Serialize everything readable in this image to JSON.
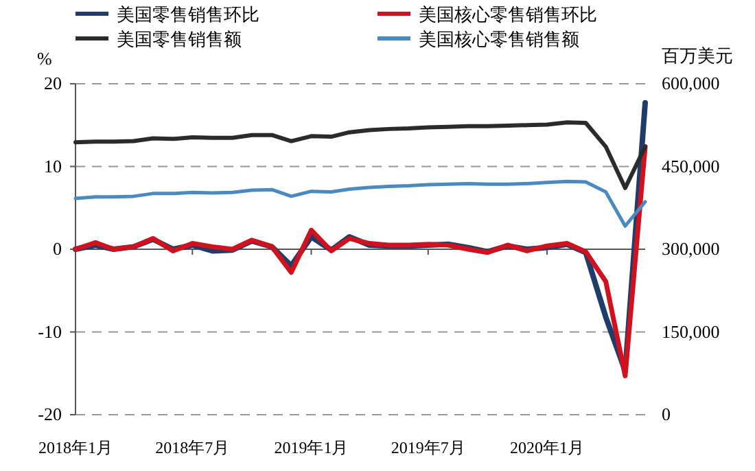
{
  "chart_data": {
    "type": "line",
    "ylabel": "%",
    "y2label": "百万美元",
    "x": [
      "2018-01",
      "2018-02",
      "2018-03",
      "2018-04",
      "2018-05",
      "2018-06",
      "2018-07",
      "2018-08",
      "2018-09",
      "2018-10",
      "2018-11",
      "2018-12",
      "2019-01",
      "2019-02",
      "2019-03",
      "2019-04",
      "2019-05",
      "2019-06",
      "2019-07",
      "2019-08",
      "2019-09",
      "2019-10",
      "2019-11",
      "2019-12",
      "2020-01",
      "2020-02",
      "2020-03",
      "2020-04",
      "2020-05",
      "2020-06"
    ],
    "xlim": [
      "2018-01",
      "2020-06"
    ],
    "xticks": [
      {
        "value": "2018-01",
        "label": "2018年1月"
      },
      {
        "value": "2018-07",
        "label": "2018年7月"
      },
      {
        "value": "2019-01",
        "label": "2019年1月"
      },
      {
        "value": "2019-07",
        "label": "2019年7月"
      },
      {
        "value": "2020-01",
        "label": "2020年1月"
      }
    ],
    "ylim": [
      -20,
      20
    ],
    "yticks": [
      -20,
      -10,
      0,
      10,
      20
    ],
    "y2lim": [
      0,
      600000
    ],
    "y2ticks": [
      {
        "value": 0,
        "label": "0"
      },
      {
        "value": 150000,
        "label": "150,000"
      },
      {
        "value": 300000,
        "label": "300,000"
      },
      {
        "value": 450000,
        "label": "450,000"
      },
      {
        "value": 600000,
        "label": "600,000"
      }
    ],
    "series": [
      {
        "name": "美国零售销售环比",
        "color": "#1f3d6b",
        "values": [
          0,
          0.5,
          0,
          0.3,
          1.2,
          0,
          0.5,
          -0.2,
          -0.1,
          1.0,
          0.3,
          -2.0,
          1.5,
          -0.1,
          1.5,
          0.5,
          0.4,
          0.4,
          0.5,
          0.6,
          0.2,
          -0.3,
          0.4,
          0,
          0.2,
          0.6,
          -0.4,
          -8.2,
          -14.7,
          17.7
        ]
      },
      {
        "name": "美国核心零售销售环比",
        "color": "#d0121e",
        "values": [
          0,
          0.8,
          0,
          0.3,
          1.3,
          -0.2,
          0.7,
          0.3,
          0,
          1.1,
          0.3,
          -2.8,
          2.3,
          -0.2,
          1.3,
          0.7,
          0.5,
          0.5,
          0.6,
          0.5,
          0,
          -0.4,
          0.5,
          -0.2,
          0.4,
          0.7,
          -0.3,
          -3.9,
          -15.3,
          12.4
        ]
      },
      {
        "name": "美国零售销售额",
        "color": "#2b2b2b",
        "axis": "y2",
        "values": [
          494000,
          495000,
          495000,
          496000,
          501000,
          500000,
          503000,
          502000,
          502000,
          507000,
          507000,
          496000,
          505000,
          504000,
          512000,
          516000,
          518000,
          519000,
          521000,
          522000,
          523000,
          523000,
          524000,
          525000,
          526000,
          530000,
          529000,
          486000,
          411000,
          486000
        ]
      },
      {
        "name": "美国核心零售销售额",
        "color": "#4a8ac0",
        "axis": "y2",
        "values": [
          392000,
          395000,
          395000,
          396000,
          401000,
          401000,
          403000,
          402000,
          403000,
          407000,
          408000,
          396000,
          405000,
          404000,
          409000,
          412000,
          414000,
          415000,
          417000,
          418000,
          419000,
          418000,
          418000,
          419000,
          421000,
          423000,
          422000,
          404000,
          342000,
          386000
        ]
      }
    ],
    "ref_lines": [
      {
        "axis": "y",
        "value": 0,
        "line_style": "solid"
      }
    ],
    "grid": "y",
    "legend": "top",
    "line_style": "solid"
  }
}
